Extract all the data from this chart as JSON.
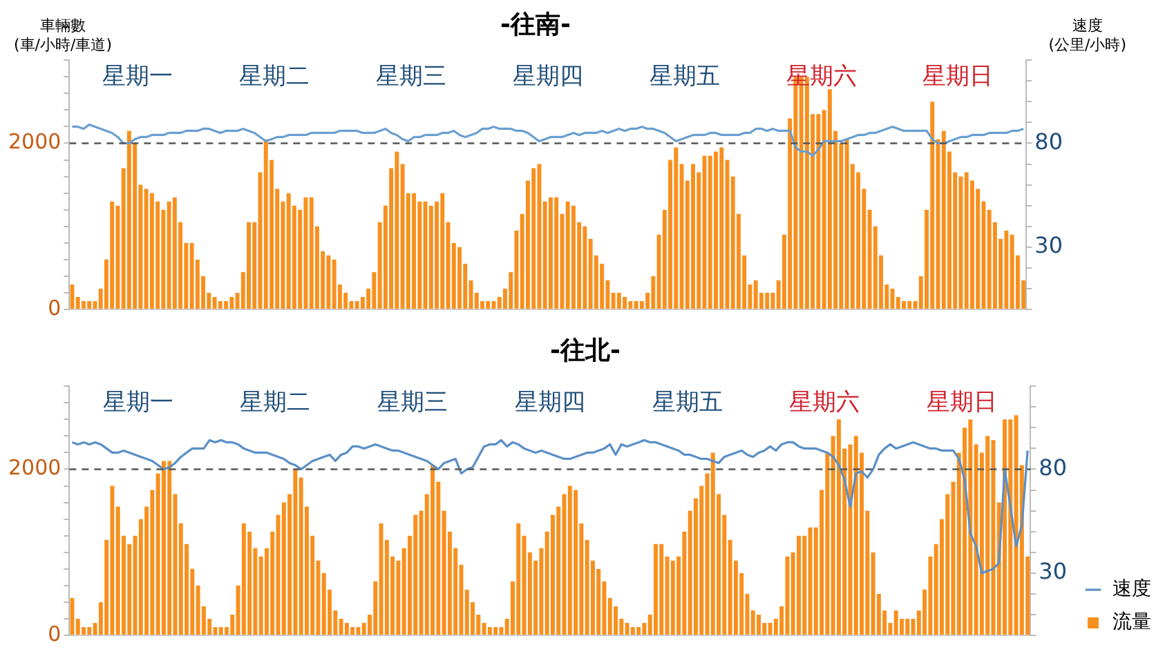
{
  "chart_data": [
    {
      "type": "bar",
      "title": "-往南-",
      "ylabel": "車輛數\n(車/小時/車道)",
      "y2label": "速度\n(公里/小時)",
      "categories": [
        null,
        null,
        null,
        null,
        null,
        null,
        null,
        null,
        null,
        null,
        null,
        null,
        null,
        null,
        null,
        null,
        null,
        null,
        null,
        null,
        null,
        null,
        null,
        null,
        null,
        null,
        null,
        null,
        null,
        null,
        null,
        null,
        null,
        null,
        null,
        null,
        null,
        null,
        null,
        null,
        null,
        null,
        null,
        null,
        null,
        null,
        null,
        null,
        null,
        null,
        null,
        null,
        null,
        null,
        null,
        null,
        null,
        null,
        null,
        null,
        null,
        null,
        null,
        null,
        null,
        null,
        null,
        null,
        null,
        null,
        null,
        null,
        null,
        null,
        null,
        null,
        null,
        null,
        null,
        null,
        null,
        null,
        null,
        null,
        null,
        null,
        null,
        null,
        null,
        null,
        null,
        null,
        null,
        null,
        null,
        null,
        null,
        null,
        null,
        null,
        null,
        null,
        null,
        null,
        null,
        null,
        null,
        null,
        null,
        null,
        null,
        null,
        null,
        null,
        null,
        null,
        null,
        null,
        null,
        null,
        null,
        null,
        null,
        null,
        null,
        null,
        null,
        null,
        null,
        null,
        null,
        null,
        null,
        null,
        null,
        null,
        null,
        null,
        null,
        null,
        null,
        null,
        null,
        null,
        null,
        null,
        null,
        null,
        null,
        null,
        null,
        null,
        null,
        null,
        null,
        null,
        null,
        null,
        null,
        null,
        null,
        null,
        null,
        null,
        null,
        null,
        null,
        null
      ],
      "series": [
        {
          "color": "#f7901e",
          "values": [
            300,
            150,
            100,
            100,
            100,
            250,
            600,
            1300,
            1250,
            1700,
            2150,
            2000,
            1500,
            1450,
            1400,
            1300,
            1200,
            1300,
            1350,
            1050,
            800,
            800,
            600,
            400,
            200,
            150,
            100,
            100,
            150,
            200,
            450,
            1050,
            1050,
            1650,
            2050,
            1800,
            1450,
            1300,
            1400,
            1250,
            1200,
            1350,
            1350,
            1000,
            700,
            650,
            600,
            300,
            200,
            100,
            100,
            150,
            250,
            450,
            1050,
            1250,
            1700,
            1900,
            1750,
            1400,
            1400,
            1300,
            1300,
            1250,
            1300,
            1400,
            1050,
            800,
            750,
            550,
            350,
            200,
            100,
            100,
            100,
            150,
            250,
            450,
            950,
            1150,
            1550,
            1700,
            1750,
            1300,
            1350,
            1350,
            1150,
            1300,
            1250,
            1050,
            1000,
            850,
            650,
            550,
            350,
            200,
            200,
            150,
            100,
            100,
            100,
            200,
            400,
            900,
            1200,
            1800,
            1950,
            1750,
            1550,
            1750,
            1650,
            1850,
            1850,
            1900,
            1950,
            1800,
            1600,
            1150,
            650,
            300,
            350,
            200,
            200,
            200,
            350,
            900,
            2300,
            2800,
            2800,
            2800,
            2350,
            2350,
            2400,
            2650,
            2150,
            2000,
            2050,
            1750,
            1650,
            1450,
            1200,
            1000,
            650,
            300,
            250,
            150,
            100,
            100,
            100,
            400,
            1200,
            2500,
            2050,
            2150,
            1900,
            1650,
            1600,
            1650,
            1550,
            1450,
            1300,
            1200,
            1050,
            850,
            950,
            900,
            650,
            350
          ]
        },
        {
          "type": "line",
          "axis": "y2",
          "color": "#6a9fd0",
          "values": [
            88,
            88,
            87,
            89,
            88,
            87,
            86,
            85,
            83,
            80,
            80,
            82,
            83,
            83,
            84,
            84,
            84,
            85,
            85,
            85,
            86,
            86,
            86,
            87,
            87,
            86,
            85,
            86,
            86,
            86,
            87,
            86,
            85,
            83,
            81,
            82,
            83,
            83,
            84,
            84,
            84,
            84,
            85,
            85,
            85,
            85,
            85,
            86,
            86,
            86,
            86,
            85,
            85,
            85,
            86,
            87,
            85,
            84,
            82,
            81,
            83,
            83,
            84,
            84,
            84,
            85,
            85,
            86,
            84,
            83,
            84,
            85,
            87,
            87,
            88,
            87,
            87,
            87,
            86,
            86,
            85,
            83,
            81,
            82,
            83,
            83,
            83,
            84,
            85,
            84,
            85,
            85,
            85,
            86,
            85,
            86,
            87,
            86,
            87,
            87,
            88,
            87,
            87,
            86,
            85,
            83,
            81,
            82,
            83,
            84,
            84,
            84,
            85,
            85,
            84,
            84,
            84,
            84,
            85,
            85,
            87,
            87,
            86,
            87,
            86,
            86,
            86,
            78,
            76,
            76,
            74,
            77,
            81,
            81,
            81,
            81,
            82,
            83,
            84,
            84,
            85,
            85,
            86,
            87,
            88,
            87,
            86,
            86,
            86,
            86,
            86,
            82,
            80,
            80,
            81,
            82,
            83,
            83,
            84,
            84,
            84,
            85,
            85,
            85,
            85,
            86,
            86,
            87
          ]
        }
      ],
      "ylim": [
        0,
        3000
      ],
      "yticks": [
        {
          "value": 0,
          "label": "0"
        },
        {
          "value": 200,
          "label": null
        },
        {
          "value": 400,
          "label": null
        },
        {
          "value": 600,
          "label": null
        },
        {
          "value": 800,
          "label": null
        },
        {
          "value": 1000,
          "label": null
        },
        {
          "value": 1200,
          "label": null
        },
        {
          "value": 1400,
          "label": null
        },
        {
          "value": 1600,
          "label": null
        },
        {
          "value": 1800,
          "label": null
        },
        {
          "value": 2000,
          "label": "2000"
        },
        {
          "value": 2200,
          "label": null
        },
        {
          "value": 2400,
          "label": null
        },
        {
          "value": 2600,
          "label": null
        },
        {
          "value": 2800,
          "label": null
        },
        {
          "value": 3000,
          "label": null
        }
      ],
      "y2lim": [
        0,
        120
      ],
      "y2ticks": [
        {
          "value": 0,
          "label": null
        },
        {
          "value": 10,
          "label": null
        },
        {
          "value": 20,
          "label": null
        },
        {
          "value": 30,
          "label": "30"
        },
        {
          "value": 40,
          "label": null
        },
        {
          "value": 50,
          "label": null
        },
        {
          "value": 60,
          "label": null
        },
        {
          "value": 70,
          "label": null
        },
        {
          "value": 80,
          "label": "80"
        },
        {
          "value": 90,
          "label": null
        },
        {
          "value": 100,
          "label": null
        },
        {
          "value": 110,
          "label": null
        },
        {
          "value": 120,
          "label": null
        }
      ],
      "ref_lines": [
        {
          "axis": "y",
          "value": 2000,
          "color": "#555555",
          "line_style": "dashed"
        }
      ],
      "annotations": [
        "星期一",
        "星期二",
        "星期三",
        "星期四",
        "星期五",
        "星期六",
        "星期日"
      ],
      "tick_labels": "y",
      "marker": "none",
      "line_style": "solid"
    },
    {
      "type": "bar",
      "title": "-往北-",
      "legend": "bottom right",
      "categories": [
        null,
        null,
        null,
        null,
        null,
        null,
        null,
        null,
        null,
        null,
        null,
        null,
        null,
        null,
        null,
        null,
        null,
        null,
        null,
        null,
        null,
        null,
        null,
        null,
        null,
        null,
        null,
        null,
        null,
        null,
        null,
        null,
        null,
        null,
        null,
        null,
        null,
        null,
        null,
        null,
        null,
        null,
        null,
        null,
        null,
        null,
        null,
        null,
        null,
        null,
        null,
        null,
        null,
        null,
        null,
        null,
        null,
        null,
        null,
        null,
        null,
        null,
        null,
        null,
        null,
        null,
        null,
        null,
        null,
        null,
        null,
        null,
        null,
        null,
        null,
        null,
        null,
        null,
        null,
        null,
        null,
        null,
        null,
        null,
        null,
        null,
        null,
        null,
        null,
        null,
        null,
        null,
        null,
        null,
        null,
        null,
        null,
        null,
        null,
        null,
        null,
        null,
        null,
        null,
        null,
        null,
        null,
        null,
        null,
        null,
        null,
        null,
        null,
        null,
        null,
        null,
        null,
        null,
        null,
        null,
        null,
        null,
        null,
        null,
        null,
        null,
        null,
        null,
        null,
        null,
        null,
        null,
        null,
        null,
        null,
        null,
        null,
        null,
        null,
        null,
        null,
        null,
        null,
        null,
        null,
        null,
        null,
        null,
        null,
        null,
        null,
        null,
        null,
        null,
        null,
        null,
        null,
        null,
        null,
        null,
        null,
        null,
        null,
        null,
        null,
        null,
        null,
        null
      ],
      "series": [
        {
          "type": "line",
          "name": "速度",
          "axis": "y2",
          "color": "#5b8fc7",
          "values": [
            93,
            92,
            93,
            92,
            93,
            92,
            90,
            88,
            88,
            89,
            88,
            87,
            86,
            85,
            84,
            82,
            80,
            81,
            83,
            86,
            88,
            90,
            90,
            90,
            94,
            93,
            94,
            93,
            93,
            92,
            90,
            89,
            88,
            88,
            88,
            87,
            86,
            85,
            83,
            82,
            80,
            82,
            84,
            85,
            86,
            87,
            84,
            87,
            88,
            91,
            91,
            90,
            91,
            92,
            91,
            90,
            89,
            89,
            88,
            87,
            86,
            85,
            84,
            82,
            80,
            83,
            84,
            85,
            78,
            80,
            81,
            86,
            91,
            92,
            92,
            94,
            91,
            93,
            92,
            90,
            89,
            88,
            89,
            88,
            87,
            86,
            85,
            85,
            86,
            87,
            88,
            88,
            89,
            90,
            92,
            87,
            92,
            91,
            92,
            93,
            94,
            93,
            93,
            92,
            91,
            90,
            89,
            87,
            87,
            86,
            85,
            85,
            84,
            83,
            86,
            87,
            88,
            89,
            87,
            86,
            88,
            89,
            91,
            89,
            92,
            93,
            93,
            91,
            90,
            90,
            90,
            89,
            88,
            86,
            82,
            75,
            62,
            78,
            79,
            76,
            80,
            87,
            90,
            92,
            90,
            91,
            92,
            93,
            92,
            91,
            90,
            90,
            89,
            89,
            89,
            85,
            75,
            49,
            43,
            30,
            31,
            32,
            35,
            80,
            62,
            43,
            53,
            89
          ]
        },
        {
          "name": "流量",
          "color": "#f7901e",
          "values": [
            450,
            200,
            100,
            100,
            150,
            400,
            1150,
            1800,
            1550,
            1200,
            1100,
            1200,
            1400,
            1550,
            1750,
            1950,
            2100,
            2100,
            1700,
            1350,
            1100,
            800,
            600,
            350,
            200,
            100,
            100,
            100,
            250,
            600,
            1350,
            1250,
            1050,
            950,
            1050,
            1250,
            1450,
            1600,
            1700,
            2000,
            1900,
            1550,
            1200,
            900,
            750,
            550,
            300,
            200,
            150,
            100,
            100,
            150,
            250,
            650,
            1350,
            1150,
            950,
            900,
            1050,
            1200,
            1450,
            1500,
            1700,
            2050,
            1850,
            1500,
            1250,
            1050,
            850,
            550,
            400,
            250,
            150,
            100,
            100,
            100,
            200,
            650,
            1350,
            1200,
            1000,
            900,
            1050,
            1250,
            1450,
            1550,
            1700,
            1800,
            1750,
            1350,
            1150,
            900,
            800,
            650,
            450,
            350,
            200,
            150,
            100,
            100,
            150,
            250,
            1100,
            1100,
            950,
            900,
            950,
            1250,
            1500,
            1650,
            1800,
            1950,
            2200,
            1700,
            1450,
            1150,
            900,
            750,
            500,
            300,
            250,
            150,
            150,
            200,
            350,
            950,
            1000,
            1200,
            1200,
            1300,
            1300,
            1750,
            2200,
            2400,
            2600,
            2250,
            2300,
            2400,
            2200,
            1500,
            1000,
            500,
            300,
            150,
            300,
            200,
            200,
            200,
            300,
            550,
            950,
            1100,
            1400,
            1700,
            1850,
            2200,
            2500,
            2600,
            2300,
            2200,
            2400,
            2350,
            1600,
            2600,
            2600,
            2650,
            2050,
            950
          ]
        }
      ],
      "ylim": [
        0,
        3000
      ],
      "yticks": [
        {
          "value": 0,
          "label": "0"
        },
        {
          "value": 200,
          "label": null
        },
        {
          "value": 400,
          "label": null
        },
        {
          "value": 600,
          "label": null
        },
        {
          "value": 800,
          "label": null
        },
        {
          "value": 1000,
          "label": null
        },
        {
          "value": 1200,
          "label": null
        },
        {
          "value": 1400,
          "label": null
        },
        {
          "value": 1600,
          "label": null
        },
        {
          "value": 1800,
          "label": null
        },
        {
          "value": 2000,
          "label": "2000"
        },
        {
          "value": 2200,
          "label": null
        },
        {
          "value": 2400,
          "label": null
        },
        {
          "value": 2600,
          "label": null
        },
        {
          "value": 2800,
          "label": null
        },
        {
          "value": 3000,
          "label": null
        }
      ],
      "y2lim": [
        0,
        120
      ],
      "y2ticks": [
        {
          "value": 0,
          "label": null
        },
        {
          "value": 10,
          "label": null
        },
        {
          "value": 20,
          "label": null
        },
        {
          "value": 30,
          "label": "30"
        },
        {
          "value": 40,
          "label": null
        },
        {
          "value": 50,
          "label": null
        },
        {
          "value": 60,
          "label": null
        },
        {
          "value": 70,
          "label": null
        },
        {
          "value": 80,
          "label": "80"
        },
        {
          "value": 90,
          "label": null
        },
        {
          "value": 100,
          "label": null
        },
        {
          "value": 110,
          "label": null
        },
        {
          "value": 120,
          "label": null
        }
      ],
      "ref_lines": [
        {
          "axis": "y",
          "value": 2000,
          "color": "#555555",
          "line_style": "dashed"
        }
      ],
      "annotations": [
        "星期一",
        "星期二",
        "星期三",
        "星期四",
        "星期五",
        "星期六",
        "星期日"
      ],
      "tick_labels": "y",
      "marker": "none",
      "line_style": "solid"
    }
  ]
}
